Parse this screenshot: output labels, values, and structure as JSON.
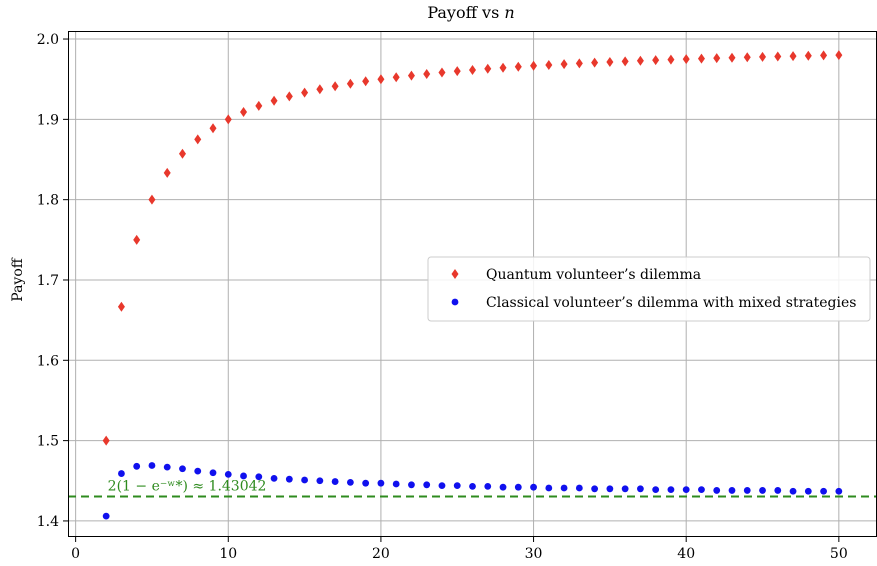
{
  "chart_data": {
    "type": "scatter",
    "title_prefix": "Payoff vs ",
    "title_var": "n",
    "xlabel": "",
    "ylabel": "Payoff",
    "xlim": [
      -0.5,
      52.5
    ],
    "ylim": [
      1.38,
      2.01
    ],
    "xticks": [
      0,
      10,
      20,
      30,
      40,
      50
    ],
    "yticks": [
      1.4,
      1.5,
      1.6,
      1.7,
      1.8,
      1.9,
      2.0
    ],
    "ytick_labels": [
      "1.4",
      "1.5",
      "1.6",
      "1.7",
      "1.8",
      "1.9",
      "2.0"
    ],
    "grid": true,
    "legend_position": "center-right",
    "series": [
      {
        "name": "Quantum volunteer’s dilemma",
        "marker": "diamond",
        "color": "#e8382c",
        "x": [
          2,
          3,
          4,
          5,
          6,
          7,
          8,
          9,
          10,
          11,
          12,
          13,
          14,
          15,
          16,
          17,
          18,
          19,
          20,
          21,
          22,
          23,
          24,
          25,
          26,
          27,
          28,
          29,
          30,
          31,
          32,
          33,
          34,
          35,
          36,
          37,
          38,
          39,
          40,
          41,
          42,
          43,
          44,
          45,
          46,
          47,
          48,
          49,
          50
        ],
        "y": [
          1.5,
          1.6667,
          1.75,
          1.8,
          1.8333,
          1.8571,
          1.875,
          1.8889,
          1.9,
          1.9091,
          1.9167,
          1.9231,
          1.9286,
          1.9333,
          1.9375,
          1.9412,
          1.9444,
          1.9474,
          1.95,
          1.9524,
          1.9545,
          1.9565,
          1.9583,
          1.96,
          1.9615,
          1.963,
          1.9643,
          1.9655,
          1.9667,
          1.9677,
          1.9688,
          1.9697,
          1.9706,
          1.9714,
          1.9722,
          1.973,
          1.9737,
          1.9744,
          1.975,
          1.9756,
          1.9762,
          1.9767,
          1.9773,
          1.9778,
          1.9783,
          1.9787,
          1.9792,
          1.9796,
          1.98
        ]
      },
      {
        "name": "Classical volunteer’s dilemma with mixed strategies",
        "marker": "circle",
        "color": "#1010ee",
        "x": [
          2,
          3,
          4,
          5,
          6,
          7,
          8,
          9,
          10,
          11,
          12,
          13,
          14,
          15,
          16,
          17,
          18,
          19,
          20,
          21,
          22,
          23,
          24,
          25,
          26,
          27,
          28,
          29,
          30,
          31,
          32,
          33,
          34,
          35,
          36,
          37,
          38,
          39,
          40,
          41,
          42,
          43,
          44,
          45,
          46,
          47,
          48,
          49,
          50
        ],
        "y": [
          1.406,
          1.459,
          1.468,
          1.469,
          1.467,
          1.465,
          1.462,
          1.46,
          1.458,
          1.456,
          1.455,
          1.453,
          1.452,
          1.451,
          1.45,
          1.449,
          1.448,
          1.447,
          1.447,
          1.446,
          1.445,
          1.445,
          1.444,
          1.444,
          1.443,
          1.443,
          1.442,
          1.442,
          1.442,
          1.441,
          1.441,
          1.441,
          1.44,
          1.44,
          1.44,
          1.44,
          1.439,
          1.439,
          1.439,
          1.439,
          1.438,
          1.438,
          1.438,
          1.438,
          1.438,
          1.437,
          1.437,
          1.437,
          1.437
        ]
      }
    ],
    "reference_line": {
      "y": 1.43042,
      "color": "#2e8b1e",
      "style": "dashed",
      "label": "2(1 − e⁻ʷ*) ≈ 1.43042"
    }
  }
}
